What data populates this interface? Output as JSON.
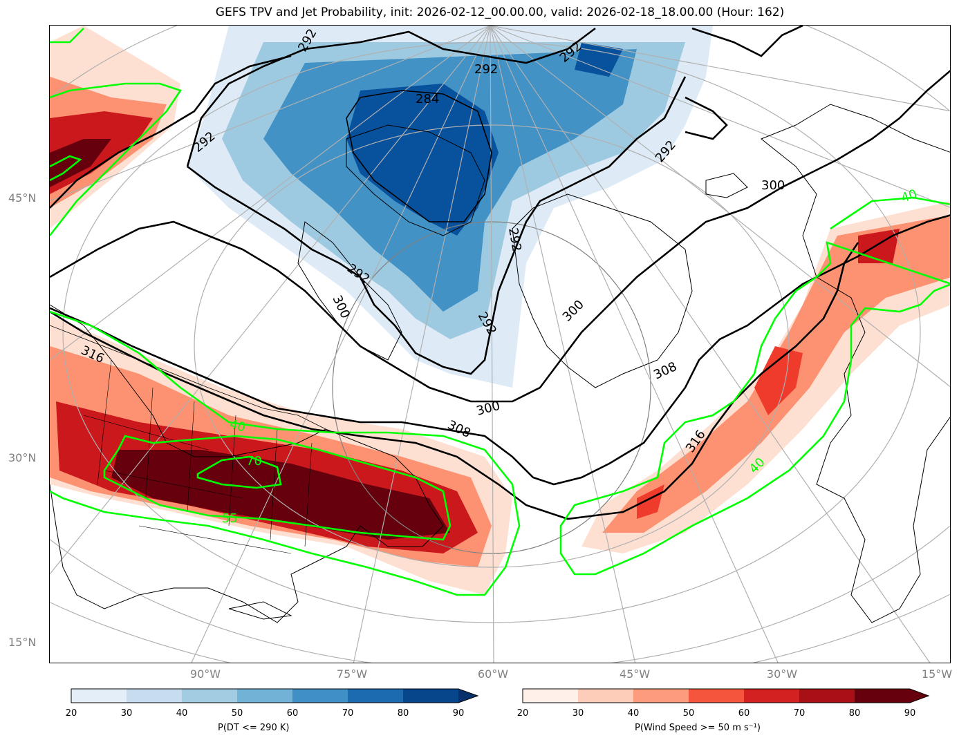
{
  "title": "GEFS TPV and Jet Probability, init: 2026-02-12_00.00.00, valid: 2026-02-18_18.00.00 (Hour: 162)",
  "lat_labels": [
    "45°N",
    "30°N",
    "15°N"
  ],
  "lon_labels": [
    "90°W",
    "75°W",
    "60°W",
    "45°W",
    "30°W",
    "15°W"
  ],
  "contour_labels_black": [
    "292",
    "292",
    "292",
    "292",
    "292",
    "284",
    "292",
    "292",
    "292",
    "300",
    "300",
    "300",
    "300",
    "308",
    "308",
    "316",
    "316"
  ],
  "contour_labels_green": [
    "40",
    "40",
    "40",
    "70",
    "55"
  ],
  "colorbar_blue": {
    "label": "P(DT <= 290 K)",
    "ticks": [
      "20",
      "30",
      "40",
      "50",
      "60",
      "70",
      "80",
      "90"
    ],
    "colors": [
      "#e3eef9",
      "#c7dcef",
      "#a2cce2",
      "#72b2d7",
      "#4090c5",
      "#1c6aaf",
      "#08468b"
    ]
  },
  "colorbar_red": {
    "label": "P(Wind Speed >= 50 m s⁻¹)",
    "ticks": [
      "20",
      "30",
      "40",
      "50",
      "60",
      "70",
      "80",
      "90"
    ],
    "colors": [
      "#fff0e9",
      "#fdcdb9",
      "#fc9c7d",
      "#f6553d",
      "#d32020",
      "#a91016",
      "#67000d"
    ]
  },
  "map_colors": {
    "blue_light": "#deebf7",
    "blue_mid": "#9ecae1",
    "blue_dark": "#4292c6",
    "blue_darkest": "#08519c",
    "red_light": "#fee0d2",
    "red_mid": "#fc9272",
    "red_dark": "#cb181d",
    "red_darkest": "#67000d",
    "jet_contour": "#00ff00",
    "grid": "#b0b0b0"
  }
}
